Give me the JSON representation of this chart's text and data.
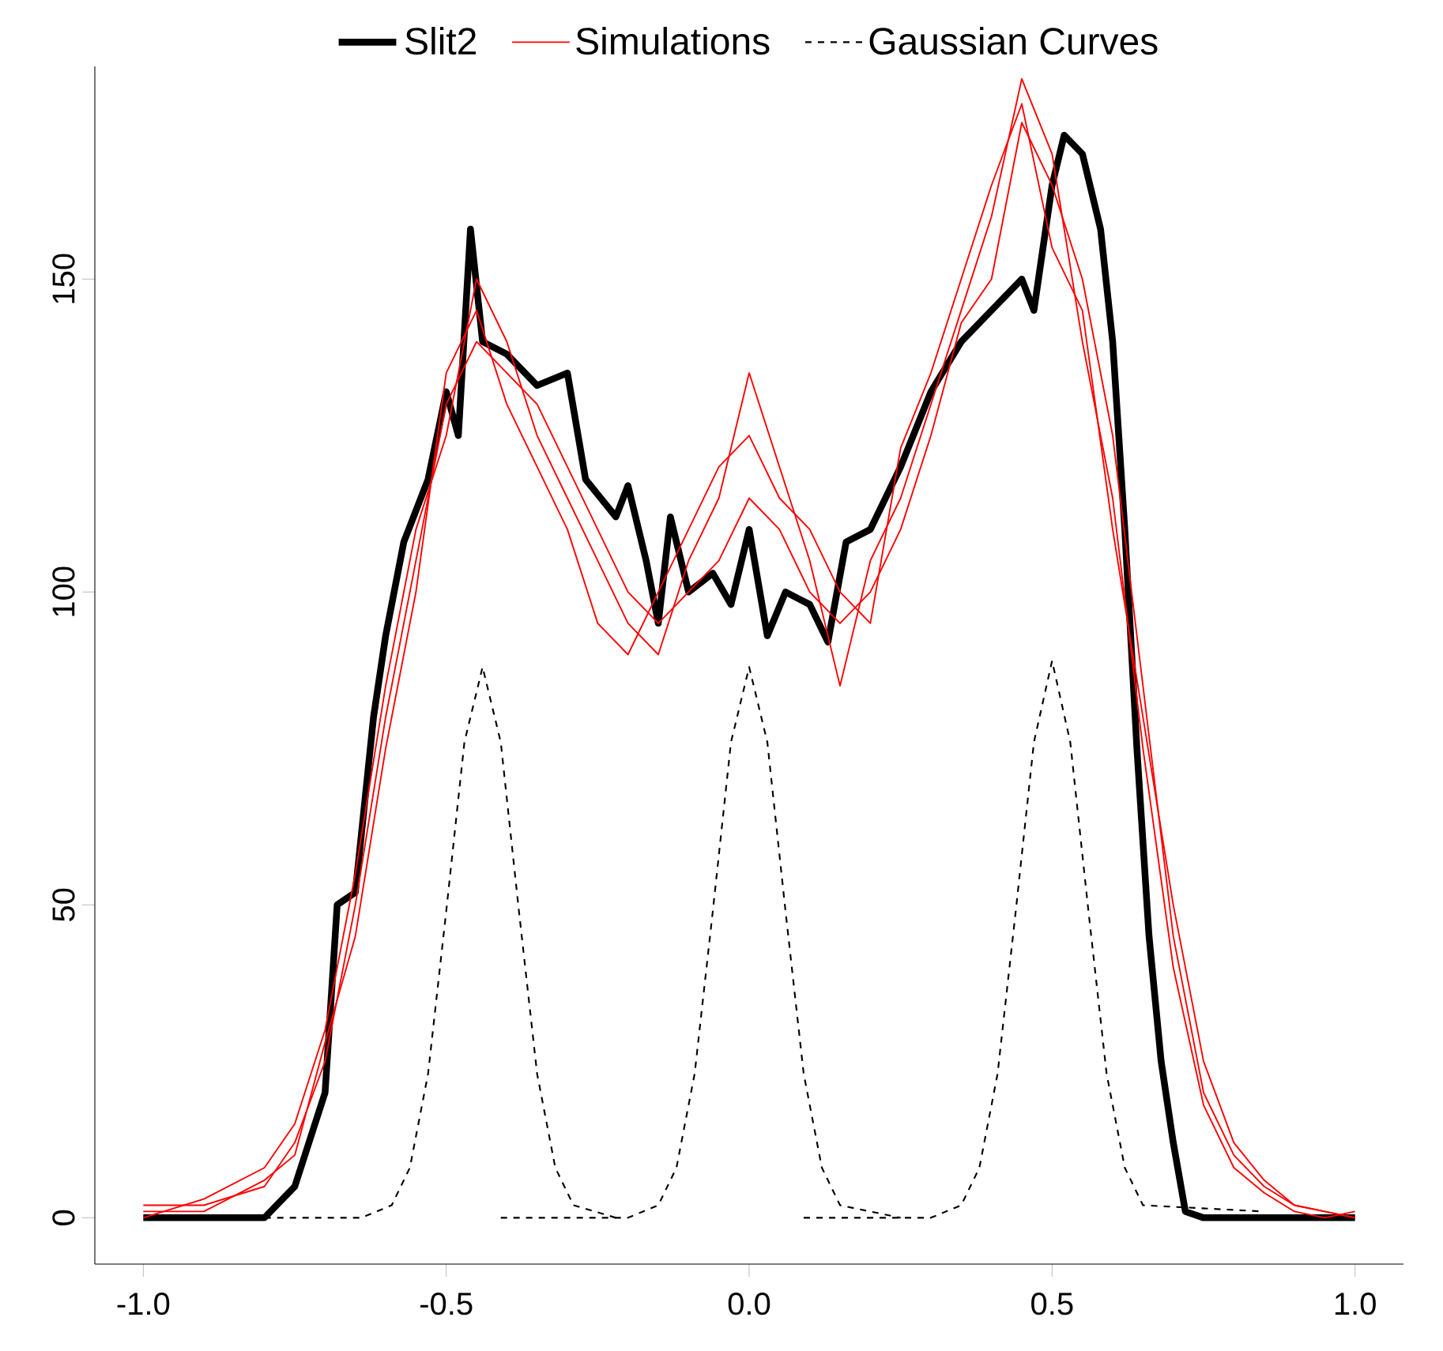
{
  "chart_data": {
    "type": "line",
    "xlim": [
      -1.08,
      1.08
    ],
    "ylim": [
      -7.4,
      184
    ],
    "xticks": [
      {
        "value": -1.0,
        "label": "-1.0"
      },
      {
        "value": -0.5,
        "label": "-0.5"
      },
      {
        "value": 0.0,
        "label": "0.0"
      },
      {
        "value": 0.5,
        "label": "0.5"
      },
      {
        "value": 1.0,
        "label": "1.0"
      }
    ],
    "yticks": [
      0,
      50,
      100,
      150
    ],
    "legend": "top",
    "series": [
      {
        "name": "Slit2",
        "color": "#000000",
        "line_style": "solid",
        "x": [
          -1,
          -0.8,
          -0.75,
          -0.7,
          -0.68,
          -0.65,
          -0.62,
          -0.6,
          -0.57,
          -0.53,
          -0.5,
          -0.48,
          -0.46,
          -0.44,
          -0.4,
          -0.35,
          -0.3,
          -0.27,
          -0.22,
          -0.2,
          -0.17,
          -0.15,
          -0.13,
          -0.1,
          -0.06,
          -0.03,
          0,
          0.03,
          0.06,
          0.1,
          0.13,
          0.16,
          0.2,
          0.25,
          0.3,
          0.35,
          0.4,
          0.45,
          0.47,
          0.5,
          0.52,
          0.55,
          0.58,
          0.6,
          0.62,
          0.64,
          0.66,
          0.68,
          0.7,
          0.72,
          0.75,
          1.0
        ],
        "values": [
          0,
          0,
          5,
          20,
          50,
          52,
          80,
          93,
          108,
          118,
          132,
          125,
          158,
          140,
          138,
          133,
          135,
          118,
          112,
          117,
          105,
          95,
          112,
          100,
          103,
          98,
          110,
          93,
          100,
          98,
          92,
          108,
          110,
          120,
          132,
          140,
          145,
          150,
          145,
          165,
          173,
          170,
          158,
          140,
          110,
          75,
          45,
          25,
          12,
          1,
          0,
          0
        ]
      },
      {
        "name": "Simulations",
        "color": "#ff0000",
        "line_style": "solid",
        "x": [
          -1,
          -0.9,
          -0.8,
          -0.75,
          -0.7,
          -0.65,
          -0.6,
          -0.55,
          -0.5,
          -0.45,
          -0.4,
          -0.35,
          -0.3,
          -0.25,
          -0.2,
          -0.15,
          -0.1,
          -0.05,
          0,
          0.05,
          0.1,
          0.15,
          0.2,
          0.25,
          0.3,
          0.35,
          0.4,
          0.45,
          0.5,
          0.55,
          0.6,
          0.65,
          0.7,
          0.75,
          0.8,
          0.85,
          0.9,
          0.95,
          1.0
        ],
        "values": [
          2,
          2,
          5,
          12,
          25,
          50,
          80,
          105,
          130,
          140,
          135,
          130,
          120,
          110,
          100,
          95,
          100,
          105,
          115,
          110,
          100,
          95,
          100,
          110,
          125,
          143,
          150,
          175,
          165,
          150,
          125,
          85,
          45,
          20,
          10,
          5,
          2,
          1,
          0
        ]
      },
      {
        "color": "#ff0000",
        "line_style": "solid",
        "x": [
          -1,
          -0.9,
          -0.8,
          -0.75,
          -0.7,
          -0.65,
          -0.6,
          -0.55,
          -0.5,
          -0.45,
          -0.4,
          -0.35,
          -0.3,
          -0.25,
          -0.2,
          -0.15,
          -0.1,
          -0.05,
          0,
          0.05,
          0.1,
          0.15,
          0.2,
          0.25,
          0.3,
          0.35,
          0.4,
          0.45,
          0.5,
          0.55,
          0.6,
          0.65,
          0.7,
          0.75,
          0.8,
          0.85,
          0.9,
          0.95,
          1.0
        ],
        "values": [
          0,
          3,
          8,
          15,
          30,
          55,
          85,
          110,
          125,
          150,
          140,
          125,
          115,
          105,
          95,
          90,
          105,
          115,
          135,
          120,
          105,
          85,
          105,
          115,
          130,
          145,
          160,
          182,
          170,
          140,
          115,
          75,
          40,
          18,
          8,
          4,
          1,
          0,
          1
        ]
      },
      {
        "color": "#ff0000",
        "line_style": "solid",
        "x": [
          -1,
          -0.9,
          -0.8,
          -0.75,
          -0.7,
          -0.65,
          -0.6,
          -0.55,
          -0.5,
          -0.45,
          -0.4,
          -0.35,
          -0.3,
          -0.25,
          -0.2,
          -0.15,
          -0.1,
          -0.05,
          0,
          0.05,
          0.1,
          0.15,
          0.2,
          0.25,
          0.3,
          0.35,
          0.4,
          0.45,
          0.5,
          0.55,
          0.6,
          0.65,
          0.7,
          0.75,
          0.8,
          0.85,
          0.9,
          0.95,
          1.0
        ],
        "values": [
          1,
          1,
          6,
          10,
          28,
          45,
          75,
          100,
          135,
          145,
          130,
          120,
          110,
          95,
          90,
          100,
          110,
          120,
          125,
          115,
          110,
          100,
          95,
          123,
          135,
          150,
          165,
          178,
          155,
          145,
          110,
          80,
          50,
          25,
          12,
          6,
          2,
          1,
          0
        ]
      },
      {
        "name": "Gaussian Curves",
        "color": "#000000",
        "line_style": "dashed",
        "x": [
          -0.8,
          -0.64,
          -0.59,
          -0.56,
          -0.53,
          -0.5,
          -0.47,
          -0.44,
          -0.41,
          -0.38,
          -0.35,
          -0.32,
          -0.29,
          -0.22
        ],
        "values": [
          0,
          0,
          2,
          8,
          23,
          49,
          76,
          88,
          76,
          49,
          23,
          8,
          2,
          0
        ]
      },
      {
        "color": "#000000",
        "line_style": "dashed",
        "x": [
          -0.41,
          -0.2,
          -0.15,
          -0.12,
          -0.09,
          -0.06,
          -0.03,
          0,
          0.03,
          0.06,
          0.09,
          0.12,
          0.15,
          0.25
        ],
        "values": [
          0,
          0,
          2,
          8,
          23,
          49,
          76,
          88,
          76,
          49,
          23,
          8,
          2,
          0
        ]
      },
      {
        "color": "#000000",
        "line_style": "dashed",
        "x": [
          0.09,
          0.3,
          0.35,
          0.38,
          0.41,
          0.44,
          0.47,
          0.5,
          0.53,
          0.56,
          0.59,
          0.62,
          0.65,
          0.85
        ],
        "values": [
          0,
          0,
          2,
          8,
          23,
          49,
          76,
          89,
          76,
          49,
          23,
          8,
          2,
          1
        ]
      }
    ]
  }
}
